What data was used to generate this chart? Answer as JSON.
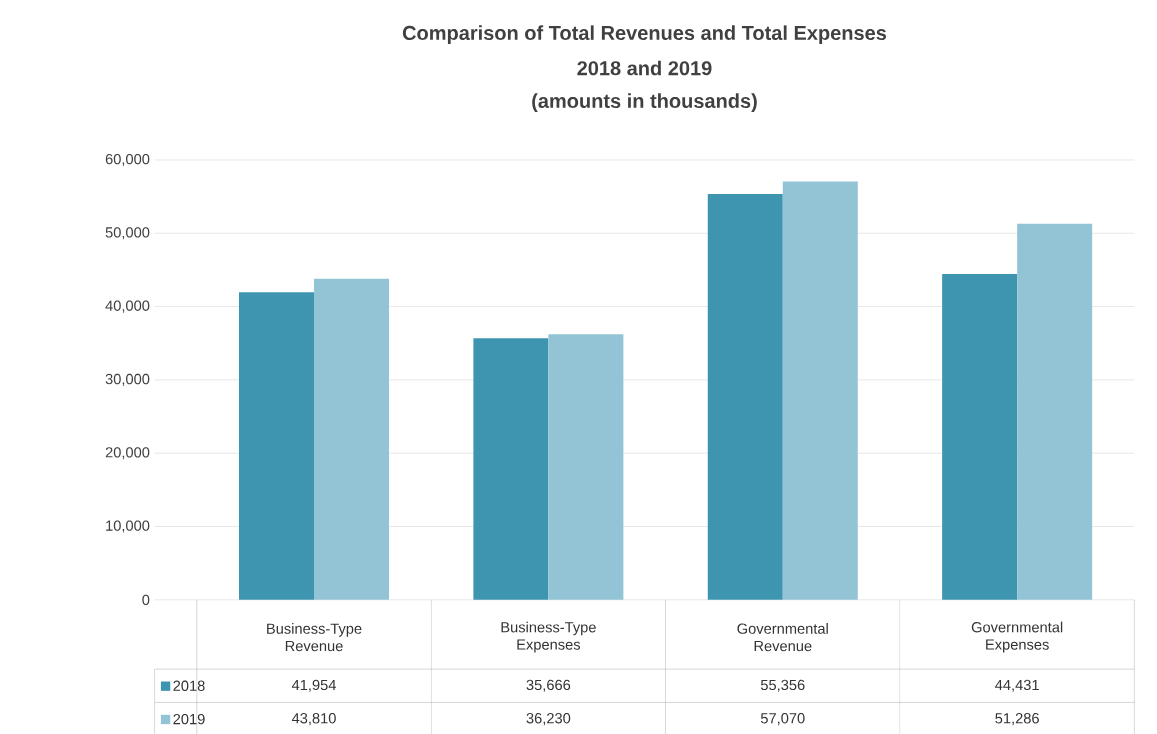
{
  "chart_data": {
    "type": "bar",
    "title": "Comparison of Total Revenues and Total Expenses",
    "subtitle": "2018 and 2019",
    "annotations": [
      "(amounts in thousands)"
    ],
    "categories": [
      "Business-Type Revenue",
      "Business-Type Expenses",
      "Governmental Revenue",
      "Governmental Expenses"
    ],
    "series": [
      {
        "name": "2018",
        "color": "#3e95b0",
        "values": [
          41954,
          35666,
          55356,
          44431
        ],
        "value_labels": [
          "41,954",
          "35,666",
          "55,356",
          "44,431"
        ]
      },
      {
        "name": "2019",
        "color": "#93c4d6",
        "values": [
          43810,
          36230,
          57070,
          51286
        ],
        "value_labels": [
          "43,810",
          "36,230",
          "57,070",
          "51,286"
        ]
      }
    ],
    "ylim": [
      0,
      60000
    ],
    "yticks": [
      0,
      {
        "value": 10000,
        "label": "10,000"
      },
      {
        "value": 20000,
        "label": "20,000"
      },
      {
        "value": 30000,
        "label": "30,000"
      },
      {
        "value": 40000,
        "label": "40,000"
      },
      {
        "value": 50000,
        "label": "50,000"
      },
      {
        "value": 60000,
        "label": "60,000"
      }
    ],
    "grid": "y",
    "legend": "bottom"
  }
}
